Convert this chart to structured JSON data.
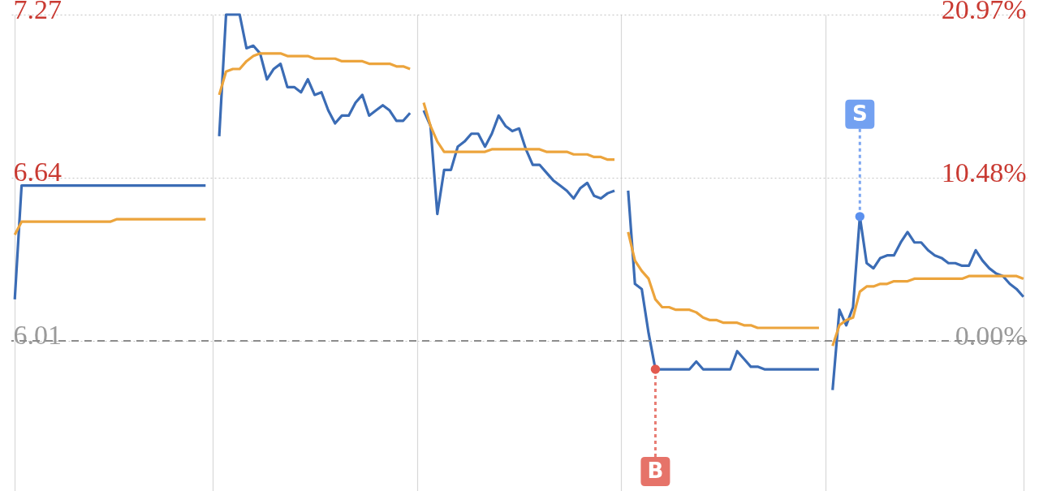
{
  "chart_data": {
    "type": "line",
    "categories": [
      null,
      null,
      null,
      null,
      null,
      null,
      null,
      null,
      null,
      null,
      null,
      null,
      null,
      null,
      null,
      null,
      null,
      null,
      null,
      null,
      null,
      null,
      null,
      null,
      null,
      null,
      null,
      null,
      null,
      null,
      null,
      null,
      null,
      null,
      null,
      null,
      null,
      null,
      null,
      null,
      null,
      null,
      null,
      null,
      null,
      null,
      null,
      null,
      null,
      null,
      null,
      null,
      null,
      null,
      null,
      null,
      null,
      null,
      null,
      null,
      null,
      null,
      null,
      null,
      null,
      null,
      null,
      null,
      null,
      null,
      null,
      null,
      null,
      null,
      null,
      null,
      null,
      null,
      null,
      null,
      null,
      null,
      null,
      null,
      null,
      null,
      null,
      null,
      null,
      null,
      null,
      null,
      null,
      null,
      null,
      null,
      null,
      null,
      null,
      null,
      null,
      null,
      null,
      null,
      null,
      null,
      null,
      null,
      null,
      null,
      null,
      null,
      null,
      null,
      null,
      null,
      null,
      null,
      null,
      null,
      null,
      null,
      null,
      null,
      null,
      null,
      null,
      null,
      null,
      null,
      null,
      null,
      null,
      null,
      null,
      null,
      null,
      null,
      null,
      null,
      null,
      null,
      null,
      null,
      null,
      null,
      null,
      null,
      null
    ],
    "series": [
      {
        "color": "#3b6cb5",
        "values": [
          6.17,
          6.61,
          6.61,
          6.61,
          6.61,
          6.61,
          6.61,
          6.61,
          6.61,
          6.61,
          6.61,
          6.61,
          6.61,
          6.61,
          6.61,
          6.61,
          6.61,
          6.61,
          6.61,
          6.61,
          6.61,
          6.61,
          6.61,
          6.61,
          6.61,
          6.61,
          6.61,
          6.61,
          6.61,
          null,
          6.8,
          7.27,
          7.27,
          7.27,
          7.14,
          7.15,
          7.12,
          7.02,
          7.06,
          7.08,
          6.99,
          6.99,
          6.97,
          7.02,
          6.96,
          6.97,
          6.9,
          6.85,
          6.88,
          6.88,
          6.93,
          6.96,
          6.88,
          6.9,
          6.92,
          6.9,
          6.86,
          6.86,
          6.89,
          null,
          6.9,
          6.84,
          6.5,
          6.67,
          6.67,
          6.76,
          6.78,
          6.81,
          6.81,
          6.76,
          6.81,
          6.88,
          6.84,
          6.82,
          6.83,
          6.75,
          6.69,
          6.69,
          6.66,
          6.63,
          6.61,
          6.59,
          6.56,
          6.6,
          6.62,
          6.57,
          6.56,
          6.58,
          6.59,
          null,
          6.59,
          6.23,
          6.21,
          6.04,
          5.9,
          5.9,
          5.9,
          5.9,
          5.9,
          5.9,
          5.93,
          5.9,
          5.9,
          5.9,
          5.9,
          5.9,
          5.97,
          5.94,
          5.91,
          5.91,
          5.9,
          5.9,
          5.9,
          5.9,
          5.9,
          5.9,
          5.9,
          5.9,
          5.9,
          null,
          5.82,
          6.13,
          6.07,
          6.14,
          6.49,
          6.31,
          6.29,
          6.33,
          6.34,
          6.34,
          6.39,
          6.43,
          6.39,
          6.39,
          6.36,
          6.34,
          6.33,
          6.31,
          6.31,
          6.3,
          6.3,
          6.36,
          6.32,
          6.29,
          6.27,
          6.26,
          6.23,
          6.21,
          6.18
        ]
      },
      {
        "color": "#eca43c",
        "values": [
          6.42,
          6.47,
          6.47,
          6.47,
          6.47,
          6.47,
          6.47,
          6.47,
          6.47,
          6.47,
          6.47,
          6.47,
          6.47,
          6.47,
          6.47,
          6.48,
          6.48,
          6.48,
          6.48,
          6.48,
          6.48,
          6.48,
          6.48,
          6.48,
          6.48,
          6.48,
          6.48,
          6.48,
          6.48,
          null,
          6.96,
          7.05,
          7.06,
          7.06,
          7.09,
          7.11,
          7.12,
          7.12,
          7.12,
          7.12,
          7.11,
          7.11,
          7.11,
          7.11,
          7.1,
          7.1,
          7.1,
          7.1,
          7.09,
          7.09,
          7.09,
          7.09,
          7.08,
          7.08,
          7.08,
          7.08,
          7.07,
          7.07,
          7.06,
          null,
          6.93,
          6.84,
          6.78,
          6.74,
          6.74,
          6.74,
          6.74,
          6.74,
          6.74,
          6.74,
          6.75,
          6.75,
          6.75,
          6.75,
          6.75,
          6.75,
          6.75,
          6.75,
          6.74,
          6.74,
          6.74,
          6.74,
          6.73,
          6.73,
          6.73,
          6.72,
          6.72,
          6.71,
          6.71,
          null,
          6.43,
          6.32,
          6.28,
          6.25,
          6.17,
          6.14,
          6.14,
          6.13,
          6.13,
          6.13,
          6.12,
          6.1,
          6.09,
          6.09,
          6.08,
          6.08,
          6.08,
          6.07,
          6.07,
          6.06,
          6.06,
          6.06,
          6.06,
          6.06,
          6.06,
          6.06,
          6.06,
          6.06,
          6.06,
          null,
          5.99,
          6.07,
          6.09,
          6.1,
          6.2,
          6.22,
          6.22,
          6.23,
          6.23,
          6.24,
          6.24,
          6.24,
          6.25,
          6.25,
          6.25,
          6.25,
          6.25,
          6.25,
          6.25,
          6.25,
          6.26,
          6.26,
          6.26,
          6.26,
          6.26,
          6.26,
          6.26,
          6.26,
          6.25
        ]
      },
      {
        "type": "scatter",
        "name": "B",
        "color": "#e25a4f",
        "values": [
          null,
          null,
          null,
          null,
          null,
          null,
          null,
          null,
          null,
          null,
          null,
          null,
          null,
          null,
          null,
          null,
          null,
          null,
          null,
          null,
          null,
          null,
          null,
          null,
          null,
          null,
          null,
          null,
          null,
          null,
          null,
          null,
          null,
          null,
          null,
          null,
          null,
          null,
          null,
          null,
          null,
          null,
          null,
          null,
          null,
          null,
          null,
          null,
          null,
          null,
          null,
          null,
          null,
          null,
          null,
          null,
          null,
          null,
          null,
          null,
          null,
          null,
          null,
          null,
          null,
          null,
          null,
          null,
          null,
          null,
          null,
          null,
          null,
          null,
          null,
          null,
          null,
          null,
          null,
          null,
          null,
          null,
          null,
          null,
          null,
          null,
          null,
          null,
          null,
          null,
          null,
          null,
          null,
          null,
          5.9,
          null,
          null,
          null,
          null,
          null,
          null,
          null,
          null,
          null,
          null,
          null,
          null,
          null,
          null,
          null,
          null,
          null,
          null,
          null,
          null,
          null,
          null,
          null,
          null,
          null,
          null,
          null,
          null,
          null,
          null,
          null,
          null,
          null,
          null,
          null,
          null,
          null,
          null,
          null,
          null,
          null,
          null,
          null,
          null,
          null,
          null,
          null,
          null,
          null,
          null,
          null,
          null,
          null,
          null
        ]
      },
      {
        "type": "scatter",
        "name": "S",
        "color": "#5b90ee",
        "values": [
          null,
          null,
          null,
          null,
          null,
          null,
          null,
          null,
          null,
          null,
          null,
          null,
          null,
          null,
          null,
          null,
          null,
          null,
          null,
          null,
          null,
          null,
          null,
          null,
          null,
          null,
          null,
          null,
          null,
          null,
          null,
          null,
          null,
          null,
          null,
          null,
          null,
          null,
          null,
          null,
          null,
          null,
          null,
          null,
          null,
          null,
          null,
          null,
          null,
          null,
          null,
          null,
          null,
          null,
          null,
          null,
          null,
          null,
          null,
          null,
          null,
          null,
          null,
          null,
          null,
          null,
          null,
          null,
          null,
          null,
          null,
          null,
          null,
          null,
          null,
          null,
          null,
          null,
          null,
          null,
          null,
          null,
          null,
          null,
          null,
          null,
          null,
          null,
          null,
          null,
          null,
          null,
          null,
          null,
          null,
          null,
          null,
          null,
          null,
          null,
          null,
          null,
          null,
          null,
          null,
          null,
          null,
          null,
          null,
          null,
          null,
          null,
          null,
          null,
          null,
          null,
          null,
          null,
          null,
          null,
          null,
          null,
          null,
          null,
          6.49,
          null,
          null,
          null,
          null,
          null,
          null,
          null,
          null,
          null,
          null,
          null,
          null,
          null,
          null,
          null,
          null,
          null,
          null,
          null,
          null,
          null,
          null,
          null,
          null
        ]
      }
    ],
    "ylim": [
      5.43,
      7.27
    ],
    "yticks": [
      6.01,
      6.64,
      7.27
    ],
    "y2lim": [
      -9.65,
      20.97
    ],
    "y2ticks": [
      {
        "value": 0,
        "label": "0.00%"
      },
      {
        "value": 10.48,
        "label": "10.48%"
      },
      {
        "value": 20.97,
        "label": "20.97%"
      }
    ],
    "ref_lines": [
      {
        "axis": "y2",
        "value": 0,
        "line_style": "dashed",
        "color": "#8c8c8c"
      }
    ],
    "grid": true
  }
}
